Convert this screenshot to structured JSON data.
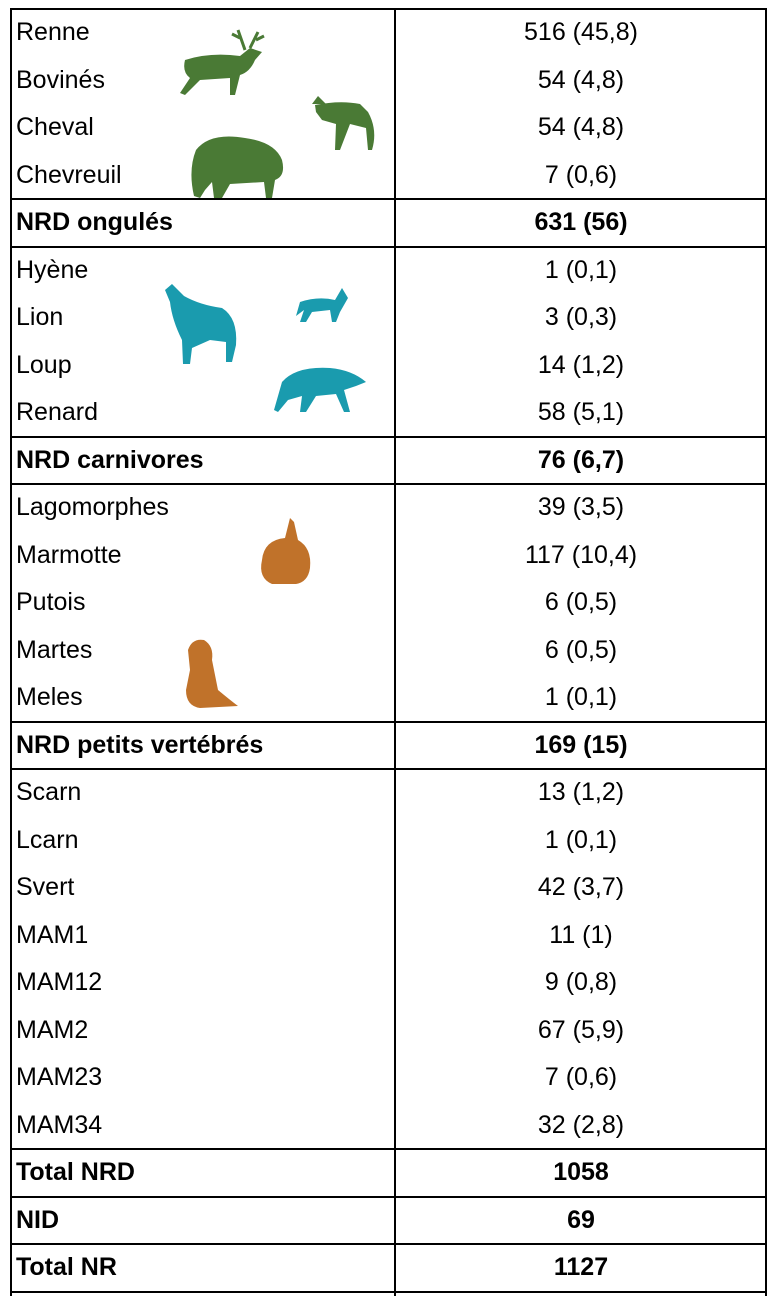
{
  "table": {
    "rows": [
      {
        "label": "Renne",
        "value": "516 (45,8)"
      },
      {
        "label": "Bovinés",
        "value": "54 (4,8)"
      },
      {
        "label": "Cheval",
        "value": "54 (4,8)"
      },
      {
        "label": "Chevreuil",
        "value": "7 (0,6)"
      },
      {
        "label": "NRD ongulés",
        "value": "631 (56)",
        "bold": true
      },
      {
        "label": "Hyène",
        "value": "1 (0,1)"
      },
      {
        "label": "Lion",
        "value": "3 (0,3)"
      },
      {
        "label": "Loup",
        "value": "14 (1,2)"
      },
      {
        "label": "Renard",
        "value": "58 (5,1)"
      },
      {
        "label": "NRD carnivores",
        "value": "76 (6,7)",
        "bold": true
      },
      {
        "label": "Lagomorphes",
        "value": "39 (3,5)"
      },
      {
        "label": "Marmotte",
        "value": "117 (10,4)"
      },
      {
        "label": "Putois",
        "value": "6 (0,5)"
      },
      {
        "label": "Martes",
        "value": "6 (0,5)"
      },
      {
        "label": "Meles",
        "value": "1 (0,1)"
      },
      {
        "label": "NRD petits vertébrés",
        "value": "169 (15)",
        "bold": true
      },
      {
        "label": "Scarn",
        "value": "13 (1,2)"
      },
      {
        "label": "Lcarn",
        "value": "1 (0,1)"
      },
      {
        "label": "Svert",
        "value": "42 (3,7)"
      },
      {
        "label": "MAM1",
        "value": "11 (1)"
      },
      {
        "label": "MAM12",
        "value": "9 (0,8)"
      },
      {
        "label": "MAM2",
        "value": "67 (5,9)"
      },
      {
        "label": "MAM23",
        "value": "7 (0,6)"
      },
      {
        "label": "MAM34",
        "value": "32 (2,8)"
      },
      {
        "label": "Total NRD",
        "value": 1058,
        "bold": true
      },
      {
        "label": "NID",
        "value": 69,
        "bold": true
      },
      {
        "label": "Total NR",
        "value": 1127,
        "bold": true
      }
    ]
  }
}
